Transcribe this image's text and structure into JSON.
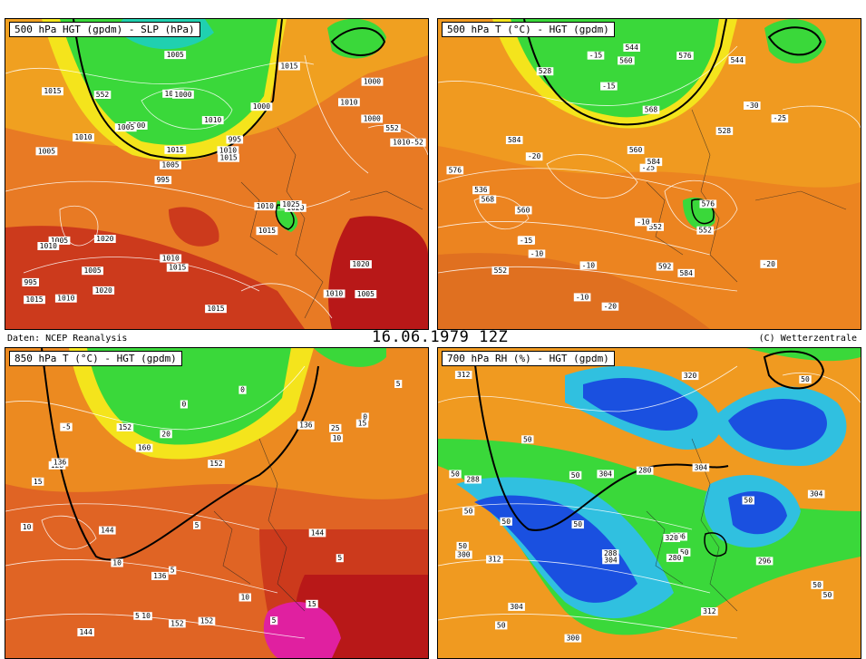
{
  "header": {
    "source": "Daten: NCEP Reanalysis",
    "date": "16.06.1979 12Z",
    "copyright": "(C) Wetterzentrale"
  },
  "panels": [
    {
      "title": "500 hPa HGT (gpdm) - SLP (hPa)",
      "labels": [
        "1005",
        "1005",
        "1000",
        "995",
        "1000",
        "1010",
        "1015",
        "1010",
        "1005",
        "1000",
        "995",
        "1005",
        "1000",
        "995",
        "1020",
        "1015",
        "1005",
        "1010-52",
        "1010",
        "1000",
        "1005",
        "1010",
        "1015",
        "552",
        "1015",
        "1020",
        "1010",
        "1020",
        "1025",
        "1015",
        "1005",
        "1010",
        "1015",
        "1020",
        "552",
        "1010",
        "1015",
        "1015",
        "1015",
        "1010",
        "1010"
      ]
    },
    {
      "title": "500 hPa T (°C) - HGT (gpdm)",
      "labels": [
        "552",
        "544",
        "528",
        "-30",
        "552",
        "-20",
        "560",
        "568",
        "-25",
        "528",
        "536",
        "544",
        "552",
        "-25",
        "-20",
        "-15",
        "-20",
        "576",
        "-15",
        "-10",
        "584",
        "560",
        "-15",
        "584",
        "560",
        "-10",
        "568",
        "576",
        "568",
        "576",
        "584",
        "-10",
        "592",
        "-10"
      ]
    },
    {
      "title": "850 hPa T (°C) - HGT (gpdm)",
      "labels": [
        "136",
        "5",
        "0",
        "144",
        "0",
        "5",
        "5",
        "0",
        "10",
        "128",
        "-5",
        "136",
        "15",
        "5",
        "136",
        "5",
        "144",
        "10",
        "15",
        "144",
        "10",
        "152",
        "152",
        "5",
        "10",
        "152",
        "20",
        "160",
        "10",
        "25",
        "15",
        "152"
      ]
    },
    {
      "title": "700 hPa RH (%) - HGT (gpdm)",
      "labels": [
        "50",
        "288",
        "50",
        "280",
        "50",
        "304",
        "50",
        "296",
        "50",
        "280",
        "304",
        "50",
        "312",
        "288",
        "296",
        "50",
        "304",
        "300",
        "300",
        "50",
        "50",
        "320",
        "304",
        "50",
        "312",
        "320",
        "312",
        "50",
        "50",
        "50",
        "304"
      ]
    }
  ],
  "colors": {
    "teal": "#20d0a0",
    "green": "#30d830",
    "yellow": "#f4e41c",
    "orange": "#f0a020",
    "dark_orange": "#e07020",
    "red_orange": "#d84820",
    "dark_red": "#b81818",
    "magenta": "#e020a0",
    "blue": "#1a50e0",
    "cyan": "#30c0e0"
  }
}
